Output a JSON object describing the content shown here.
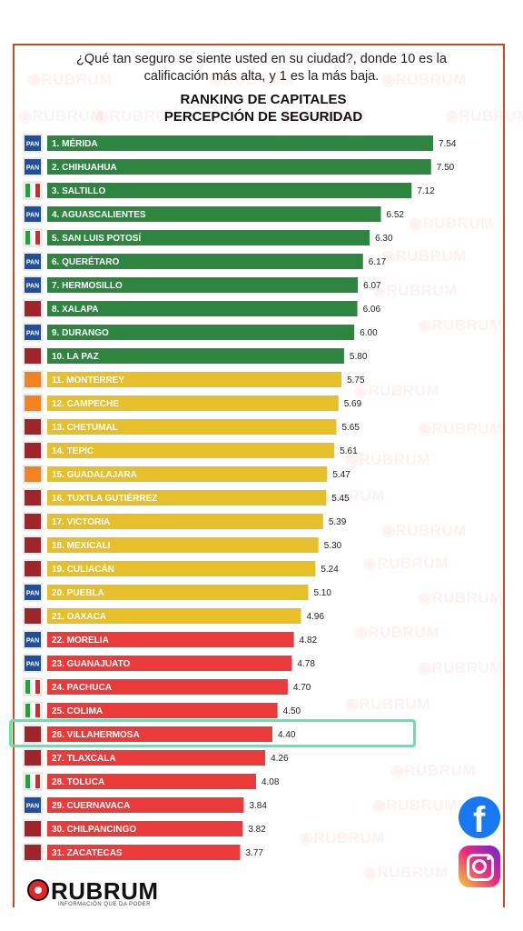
{
  "question": "¿Qué tan seguro se siente usted en su ciudad?, donde 10 es la calificación más alta, y  1 es la más baja.",
  "watermark_text": "RUBRUM",
  "brand": {
    "name": "RUBRUM",
    "tagline": "INFORMACIÓN QUE DA PODER"
  },
  "social": [
    {
      "icon": "facebook-icon",
      "color": "#1877f2"
    },
    {
      "icon": "instagram-icon",
      "color": "#e1306c"
    }
  ],
  "highlighted_rank": 26,
  "colors": {
    "green": "#2e8540",
    "yellow": "#e6bf2a",
    "red": "#ea3a3a",
    "highlight_border": "#5ee8a8",
    "pan": "#1f4e9c",
    "pri": "#2a9d3c",
    "morena": "#a1242b",
    "mc": "#f58220"
  },
  "chart_data": {
    "type": "bar",
    "orientation": "horizontal",
    "title": "RANKING DE CAPITALES",
    "subtitle": "PERCEPCIÓN DE SEGURIDAD",
    "xlabel": "",
    "ylabel": "",
    "xlim": [
      0,
      7.54
    ],
    "grid": false,
    "legend": "none",
    "categories": [
      "1. MÉRIDA",
      "2. CHIHUAHUA",
      "3. SALTILLO",
      "4. AGUASCALIENTES",
      "5. SAN LUIS POTOSÍ",
      "6. QUERÉTARO",
      "7. HERMOSILLO",
      "8. XALAPA",
      "9. DURANGO",
      "10. LA PAZ",
      "11. MONTERREY",
      "12. CAMPECHE",
      "13. CHETUMAL",
      "14. TEPIC",
      "15. GUADALAJARA",
      "16. TUXTLA GUTIÉRREZ",
      "17. VICTORIA",
      "18. MEXICALI",
      "19. CULIACÁN",
      "20. PUEBLA",
      "21. OAXACA",
      "22. MORELIA",
      "23. GUANAJUATO",
      "24. PACHUCA",
      "25. COLIMA",
      "26. VILLAHERMOSA",
      "27. TLAXCALA",
      "28. TOLUCA",
      "29. CUERNAVACA",
      "30. CHILPANCINGO",
      "31. ZACATECAS"
    ],
    "values": [
      7.54,
      7.5,
      7.12,
      6.52,
      6.3,
      6.17,
      6.07,
      6.06,
      6.0,
      5.8,
      5.75,
      5.69,
      5.65,
      5.61,
      5.47,
      5.45,
      5.39,
      5.3,
      5.24,
      5.1,
      4.96,
      4.82,
      4.78,
      4.7,
      4.5,
      4.4,
      4.26,
      4.08,
      3.84,
      3.82,
      3.77
    ],
    "value_labels": [
      "7.54",
      "7.50",
      "7.12",
      "6.52",
      "6.30",
      "6.17",
      "6.07",
      "6.06",
      "6.00",
      "5.80",
      "5.75",
      "5.69",
      "5.65",
      "5.61",
      "5.47",
      "5.45",
      "5.39",
      "5.30",
      "5.24",
      "5.10",
      "4.96",
      "4.82",
      "4.78",
      "4.70",
      "4.50",
      "4.40",
      "4.26",
      "4.08",
      "3.84",
      "3.82",
      "3.77"
    ],
    "bar_colors": [
      "green",
      "green",
      "green",
      "green",
      "green",
      "green",
      "green",
      "green",
      "green",
      "green",
      "yellow",
      "yellow",
      "yellow",
      "yellow",
      "yellow",
      "yellow",
      "yellow",
      "yellow",
      "yellow",
      "yellow",
      "yellow",
      "red",
      "red",
      "red",
      "red",
      "red",
      "red",
      "red",
      "red",
      "red",
      "red"
    ],
    "party_icons": [
      "pan",
      "pan",
      "pri",
      "pan",
      "pri",
      "pan",
      "pan",
      "morena",
      "pan",
      "morena",
      "mc",
      "mc",
      "morena",
      "morena",
      "mc",
      "morena",
      "morena",
      "morena",
      "morena",
      "pan",
      "morena",
      "pan",
      "pan",
      "pri",
      "pri",
      "morena",
      "morena",
      "pri",
      "pan",
      "morena",
      "morena"
    ],
    "party_icon_labels": {
      "pan": "PAN",
      "pri": "",
      "morena": "",
      "mc": ""
    }
  }
}
